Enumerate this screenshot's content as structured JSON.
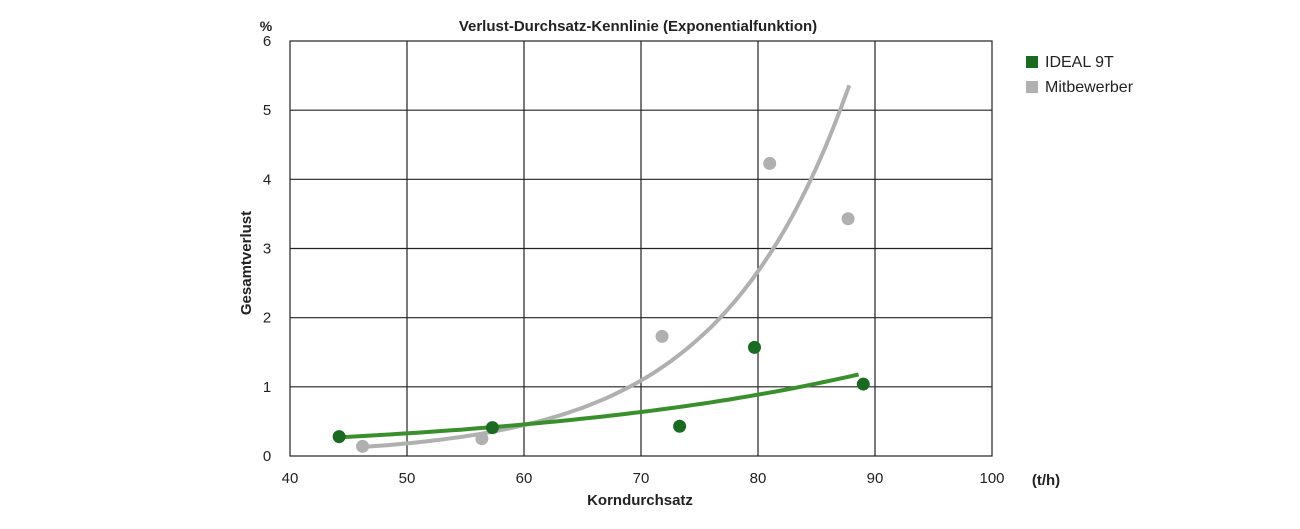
{
  "chart_data": {
    "type": "scatter",
    "title": "Verlust-Durchsatz-Kennlinie (Exponentialfunktion)",
    "xlabel": "Korndurchsatz",
    "x_unit": "(t/h)",
    "ylabel": "Gesamtverlust",
    "y_unit": "%",
    "xlim": [
      40,
      100
    ],
    "ylim": [
      0,
      6
    ],
    "x_ticks": [
      40,
      50,
      60,
      70,
      80,
      90,
      100
    ],
    "y_ticks": [
      0,
      1,
      2,
      3,
      4,
      5,
      6
    ],
    "grid": true,
    "legend": "top-right",
    "series": [
      {
        "name": "IDEAL 9T",
        "color": "#1b6a22",
        "trend_color": "#3a8f2d",
        "points": [
          [
            44.2,
            0.28
          ],
          [
            57.3,
            0.41
          ],
          [
            73.3,
            0.43
          ],
          [
            79.7,
            1.57
          ],
          [
            89.0,
            1.04
          ]
        ],
        "trend": {
          "x_start": 44.2,
          "x_end": 88.6,
          "y_start": 0.27,
          "y_end": 1.18
        }
      },
      {
        "name": "Mitbewerber",
        "color": "#b0b0b0",
        "trend_color": "#b0b0b0",
        "points": [
          [
            46.2,
            0.14
          ],
          [
            56.4,
            0.25
          ],
          [
            71.8,
            1.73
          ],
          [
            81.0,
            4.23
          ],
          [
            87.7,
            3.43
          ]
        ],
        "trend": {
          "x_start": 46.2,
          "x_end": 87.8,
          "y_start": 0.13,
          "y_end": 5.36
        }
      }
    ]
  }
}
